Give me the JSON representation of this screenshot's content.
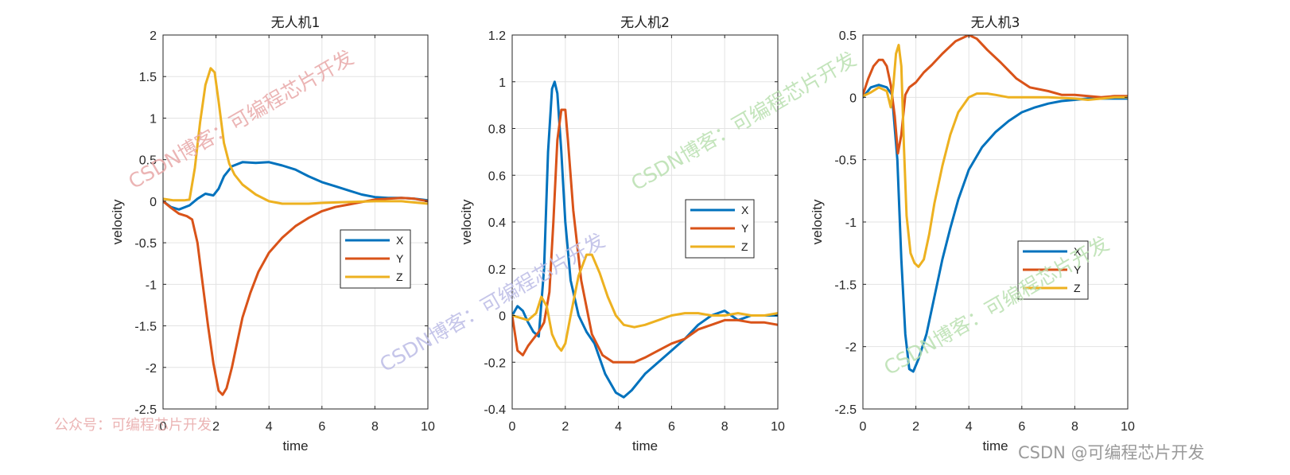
{
  "chart_data": [
    {
      "type": "line",
      "title": "无人机1",
      "xlabel": "time",
      "ylabel": "velocity",
      "xlim": [
        0,
        10
      ],
      "ylim": [
        -2.5,
        2
      ],
      "xticks": [
        0,
        2,
        4,
        6,
        8,
        10
      ],
      "xtick_labels": [
        "0",
        "2",
        "4",
        "6",
        "8",
        "10"
      ],
      "yticks": [
        -2.5,
        -2,
        -1.5,
        -1,
        -0.5,
        0,
        0.5,
        1,
        1.5,
        2
      ],
      "ytick_labels": [
        "-2.5",
        "-2",
        "-1.5",
        "-1",
        "-0.5",
        "0",
        "0.5",
        "1",
        "1.5",
        "2"
      ],
      "grid": true,
      "legend_position": "middle-right",
      "series": [
        {
          "name": "X",
          "color": "#0072BD",
          "x": [
            0,
            0.3,
            0.6,
            1,
            1.3,
            1.6,
            1.9,
            2.1,
            2.3,
            2.6,
            3,
            3.5,
            4,
            4.5,
            5,
            5.5,
            6,
            6.5,
            7,
            7.5,
            8,
            8.5,
            9,
            9.5,
            10
          ],
          "y": [
            0,
            -0.07,
            -0.1,
            -0.05,
            0.03,
            0.09,
            0.07,
            0.15,
            0.3,
            0.42,
            0.47,
            0.46,
            0.47,
            0.43,
            0.38,
            0.3,
            0.23,
            0.18,
            0.13,
            0.08,
            0.05,
            0.04,
            0.04,
            0.03,
            0.01
          ]
        },
        {
          "name": "Y",
          "color": "#D95319",
          "x": [
            0,
            0.3,
            0.6,
            0.9,
            1.1,
            1.3,
            1.5,
            1.7,
            1.9,
            2.1,
            2.25,
            2.4,
            2.6,
            2.8,
            3,
            3.3,
            3.6,
            4,
            4.5,
            5,
            5.5,
            6,
            6.5,
            7,
            7.5,
            8,
            8.5,
            9,
            9.5,
            10
          ],
          "y": [
            0,
            -0.08,
            -0.15,
            -0.18,
            -0.22,
            -0.5,
            -1.0,
            -1.5,
            -1.95,
            -2.28,
            -2.33,
            -2.25,
            -2.0,
            -1.7,
            -1.4,
            -1.1,
            -0.85,
            -0.62,
            -0.44,
            -0.3,
            -0.2,
            -0.12,
            -0.07,
            -0.04,
            -0.01,
            0.02,
            0.03,
            0.04,
            0.03,
            0.0
          ]
        },
        {
          "name": "Z",
          "color": "#EDB120",
          "x": [
            0,
            0.4,
            0.8,
            1.0,
            1.2,
            1.4,
            1.6,
            1.8,
            1.95,
            2.1,
            2.3,
            2.5,
            2.7,
            3,
            3.5,
            4,
            4.5,
            5,
            5.5,
            6,
            7,
            8,
            9,
            10
          ],
          "y": [
            0.03,
            0.01,
            0.01,
            0.02,
            0.4,
            0.95,
            1.4,
            1.6,
            1.55,
            1.2,
            0.7,
            0.45,
            0.32,
            0.2,
            0.08,
            0.0,
            -0.03,
            -0.03,
            -0.03,
            -0.02,
            -0.01,
            0.0,
            0.0,
            -0.03
          ]
        }
      ]
    },
    {
      "type": "line",
      "title": "无人机2",
      "xlabel": "time",
      "ylabel": "velocity",
      "xlim": [
        0,
        10
      ],
      "ylim": [
        -0.4,
        1.2
      ],
      "xticks": [
        0,
        2,
        4,
        6,
        8,
        10
      ],
      "xtick_labels": [
        "0",
        "2",
        "4",
        "6",
        "8",
        "10"
      ],
      "yticks": [
        -0.4,
        -0.2,
        0,
        0.2,
        0.4,
        0.6,
        0.8,
        1,
        1.2
      ],
      "ytick_labels": [
        "-0.4",
        "-0.2",
        "0",
        "0.2",
        "0.4",
        "0.6",
        "0.8",
        "1",
        "1.2"
      ],
      "grid": true,
      "legend_position": "middle-right",
      "series": [
        {
          "name": "X",
          "color": "#0072BD",
          "x": [
            0,
            0.2,
            0.4,
            0.6,
            0.8,
            1.0,
            1.2,
            1.35,
            1.5,
            1.6,
            1.7,
            1.85,
            2.0,
            2.2,
            2.5,
            2.8,
            3.1,
            3.5,
            3.9,
            4.2,
            4.5,
            5,
            5.5,
            6,
            6.5,
            7,
            7.5,
            8,
            8.5,
            9,
            9.5,
            10
          ],
          "y": [
            0,
            0.04,
            0.02,
            -0.03,
            -0.07,
            -0.09,
            0.2,
            0.7,
            0.97,
            1.0,
            0.95,
            0.7,
            0.4,
            0.15,
            0.0,
            -0.07,
            -0.12,
            -0.25,
            -0.33,
            -0.35,
            -0.32,
            -0.25,
            -0.2,
            -0.15,
            -0.1,
            -0.04,
            0.0,
            0.02,
            -0.02,
            0.0,
            0.0,
            0.0
          ]
        },
        {
          "name": "Y",
          "color": "#D95319",
          "x": [
            0,
            0.2,
            0.4,
            0.6,
            0.8,
            1.0,
            1.2,
            1.4,
            1.55,
            1.7,
            1.85,
            2.0,
            2.1,
            2.3,
            2.6,
            3.0,
            3.4,
            3.8,
            4.2,
            4.6,
            5,
            5.5,
            6,
            6.5,
            7,
            7.5,
            8,
            8.5,
            9,
            9.5,
            10
          ],
          "y": [
            0,
            -0.15,
            -0.17,
            -0.13,
            -0.1,
            -0.07,
            -0.03,
            0.1,
            0.4,
            0.75,
            0.88,
            0.88,
            0.75,
            0.45,
            0.15,
            -0.08,
            -0.17,
            -0.2,
            -0.2,
            -0.2,
            -0.18,
            -0.15,
            -0.12,
            -0.1,
            -0.06,
            -0.04,
            -0.02,
            -0.02,
            -0.03,
            -0.03,
            -0.04
          ]
        },
        {
          "name": "Z",
          "color": "#EDB120",
          "x": [
            0,
            0.3,
            0.6,
            0.9,
            1.1,
            1.3,
            1.5,
            1.7,
            1.85,
            2.0,
            2.2,
            2.5,
            2.8,
            3.0,
            3.3,
            3.6,
            3.9,
            4.2,
            4.6,
            5,
            5.5,
            6,
            6.5,
            7,
            7.5,
            8,
            8.5,
            9,
            9.5,
            10
          ],
          "y": [
            0,
            -0.01,
            -0.02,
            0.01,
            0.08,
            0.04,
            -0.08,
            -0.13,
            -0.15,
            -0.12,
            0.0,
            0.17,
            0.26,
            0.26,
            0.18,
            0.08,
            0.0,
            -0.04,
            -0.05,
            -0.04,
            -0.02,
            0.0,
            0.01,
            0.01,
            0.0,
            0.0,
            0.01,
            0.0,
            0.0,
            0.01
          ]
        }
      ]
    },
    {
      "type": "line",
      "title": "无人机3",
      "xlabel": "time",
      "ylabel": "velocity",
      "xlim": [
        0,
        10
      ],
      "ylim": [
        -2.5,
        0.5
      ],
      "xticks": [
        0,
        2,
        4,
        6,
        8,
        10
      ],
      "xtick_labels": [
        "0",
        "2",
        "4",
        "6",
        "8",
        "10"
      ],
      "yticks": [
        -2.5,
        -2,
        -1.5,
        -1,
        -0.5,
        0,
        0.5
      ],
      "ytick_labels": [
        "-2.5",
        "-2",
        "-1.5",
        "-1",
        "-0.5",
        "0",
        "0.5"
      ],
      "grid": true,
      "legend_position": "middle-right",
      "series": [
        {
          "name": "X",
          "color": "#0072BD",
          "x": [
            0,
            0.3,
            0.6,
            0.9,
            1.1,
            1.3,
            1.45,
            1.6,
            1.75,
            1.9,
            2.1,
            2.4,
            2.7,
            3.0,
            3.3,
            3.6,
            4.0,
            4.5,
            5,
            5.5,
            6,
            6.5,
            7,
            7.5,
            8,
            8.5,
            9,
            9.5,
            10
          ],
          "y": [
            0,
            0.08,
            0.1,
            0.08,
            0.02,
            -0.5,
            -1.3,
            -1.9,
            -2.18,
            -2.2,
            -2.1,
            -1.9,
            -1.6,
            -1.3,
            -1.05,
            -0.82,
            -0.58,
            -0.4,
            -0.28,
            -0.19,
            -0.12,
            -0.08,
            -0.05,
            -0.03,
            -0.02,
            -0.01,
            -0.01,
            -0.01,
            -0.01
          ]
        },
        {
          "name": "Y",
          "color": "#D95319",
          "x": [
            0,
            0.2,
            0.4,
            0.6,
            0.75,
            0.9,
            1.05,
            1.2,
            1.32,
            1.45,
            1.6,
            1.75,
            2.0,
            2.3,
            2.6,
            3.0,
            3.5,
            4.0,
            4.3,
            4.7,
            5.2,
            5.8,
            6.3,
            7.0,
            7.5,
            8,
            8.5,
            9,
            9.5,
            10
          ],
          "y": [
            0.02,
            0.15,
            0.25,
            0.3,
            0.3,
            0.25,
            0.1,
            -0.15,
            -0.45,
            -0.3,
            0.02,
            0.08,
            0.12,
            0.2,
            0.26,
            0.35,
            0.45,
            0.5,
            0.47,
            0.38,
            0.28,
            0.15,
            0.08,
            0.05,
            0.02,
            0.02,
            0.01,
            0.0,
            0.01,
            0.01
          ]
        },
        {
          "name": "Z",
          "color": "#EDB120",
          "x": [
            0,
            0.3,
            0.6,
            0.9,
            1.05,
            1.15,
            1.25,
            1.35,
            1.45,
            1.55,
            1.65,
            1.8,
            1.95,
            2.1,
            2.3,
            2.5,
            2.7,
            3.0,
            3.3,
            3.6,
            4.0,
            4.3,
            4.7,
            5,
            5.5,
            6,
            7,
            8,
            8.5,
            9,
            9.5,
            10
          ],
          "y": [
            0.01,
            0.04,
            0.08,
            0.05,
            -0.08,
            0.1,
            0.35,
            0.42,
            0.25,
            -0.4,
            -0.95,
            -1.25,
            -1.33,
            -1.36,
            -1.3,
            -1.1,
            -0.85,
            -0.55,
            -0.3,
            -0.12,
            0.0,
            0.03,
            0.03,
            0.02,
            0.0,
            0.0,
            0.0,
            -0.01,
            -0.02,
            -0.01,
            0.0,
            0.0
          ]
        }
      ]
    }
  ],
  "watermarks": {
    "blog_pink": "CSDN博客：可编程芯片开发",
    "blog_lavender": "CSDN博客：可编程芯片开发",
    "blog_green_top": "CSDN博客：可编程芯片开发",
    "blog_green_bottom": "CSDN博客：可编程芯片开发",
    "wechat": "公众号：可编程芯片开发",
    "footer": "CSDN @可编程芯片开发",
    "colors": {
      "pink": "#e8a8a8",
      "lavender": "#bcbce6",
      "green": "#b9e0b0",
      "footer": "#9a9a9a"
    }
  }
}
